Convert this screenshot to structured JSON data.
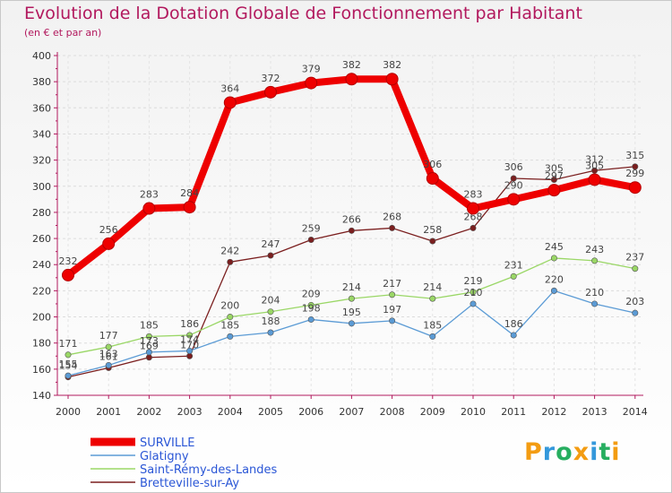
{
  "chart_data": {
    "type": "line",
    "title": "Evolution de la Dotation Globale de Fonctionnement par Habitant",
    "subtitle": "(en € et par an)",
    "xlabel": "",
    "ylabel": "",
    "ylim": [
      140,
      400
    ],
    "yticks": [
      140,
      160,
      180,
      200,
      220,
      240,
      260,
      280,
      300,
      320,
      340,
      360,
      380,
      400
    ],
    "x": [
      "2000",
      "2001",
      "2002",
      "2003",
      "2004",
      "2005",
      "2006",
      "2007",
      "2008",
      "2009",
      "2010",
      "2011",
      "2012",
      "2013",
      "2014"
    ],
    "grid": true,
    "legend_position": "bottom-left",
    "series": [
      {
        "name": "SURVILLE",
        "color": "#ee0000",
        "values": [
          232,
          256,
          283,
          284,
          364,
          372,
          379,
          382,
          382,
          306,
          283,
          290,
          297,
          305,
          299
        ]
      },
      {
        "name": "Glatigny",
        "color": "#5b9bd5",
        "values": [
          155,
          163,
          173,
          174,
          185,
          188,
          198,
          195,
          197,
          185,
          210,
          186,
          220,
          210,
          203
        ]
      },
      {
        "name": "Saint-Rémy-des-Landes",
        "color": "#9ad766",
        "values": [
          171,
          177,
          185,
          186,
          200,
          204,
          209,
          214,
          217,
          214,
          219,
          231,
          245,
          243,
          237
        ]
      },
      {
        "name": "Bretteville-sur-Ay",
        "color": "#7b1f1f",
        "values": [
          154,
          161,
          169,
          170,
          242,
          247,
          259,
          266,
          268,
          258,
          268,
          306,
          305,
          312,
          315
        ]
      }
    ]
  },
  "logo": {
    "letters": [
      "P",
      "r",
      "o",
      "x",
      "i",
      "t",
      "i"
    ]
  }
}
